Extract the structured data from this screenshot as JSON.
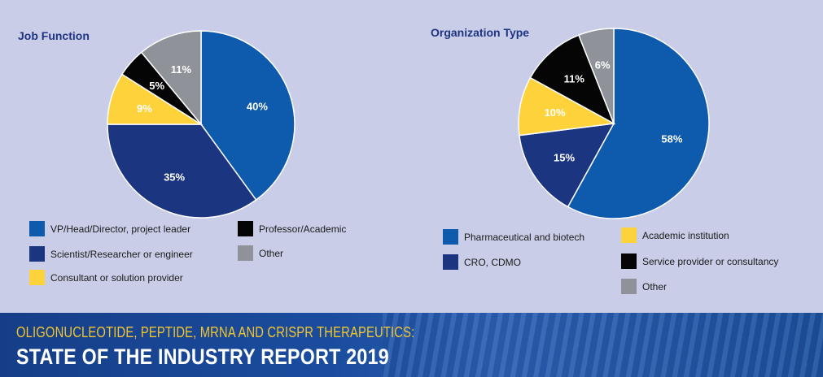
{
  "chart_data": [
    {
      "type": "pie",
      "title": "Job Function",
      "slices": [
        {
          "label": "VP/Head/Director,  project leader",
          "value": 40,
          "display": "40%",
          "color": "#0e5aad"
        },
        {
          "label": "Scientist/Researcher or engineer",
          "value": 35,
          "display": "35%",
          "color": "#1b3580"
        },
        {
          "label": "Consultant or  solution provider",
          "value": 9,
          "display": "9%",
          "color": "#fdd23a"
        },
        {
          "label": "Professor/Academic",
          "value": 5,
          "display": "5%",
          "color": "#050505"
        },
        {
          "label": "Other",
          "value": 11,
          "display": "11%",
          "color": "#8f9399"
        }
      ],
      "legend_order": [
        0,
        1,
        2,
        3,
        4
      ]
    },
    {
      "type": "pie",
      "title": "Organization Type",
      "slices": [
        {
          "label": "Pharmaceutical and biotech",
          "value": 58,
          "display": "58%",
          "color": "#0e5aad"
        },
        {
          "label": "CRO, CDMO",
          "value": 15,
          "display": "15%",
          "color": "#1b3580"
        },
        {
          "label": "Academic institution",
          "value": 10,
          "display": "10%",
          "color": "#fdd23a"
        },
        {
          "label": "Service provider or consultancy",
          "value": 11,
          "display": "11%",
          "color": "#050505"
        },
        {
          "label": "Other",
          "value": 6,
          "display": "6%",
          "color": "#8f9399"
        }
      ]
    }
  ],
  "footer": {
    "line1": "OLIGONUCLEOTIDE, PEPTIDE, MRNA AND CRISPR THERAPEUTICS:",
    "line2": "STATE OF THE INDUSTRY REPORT 2019"
  }
}
